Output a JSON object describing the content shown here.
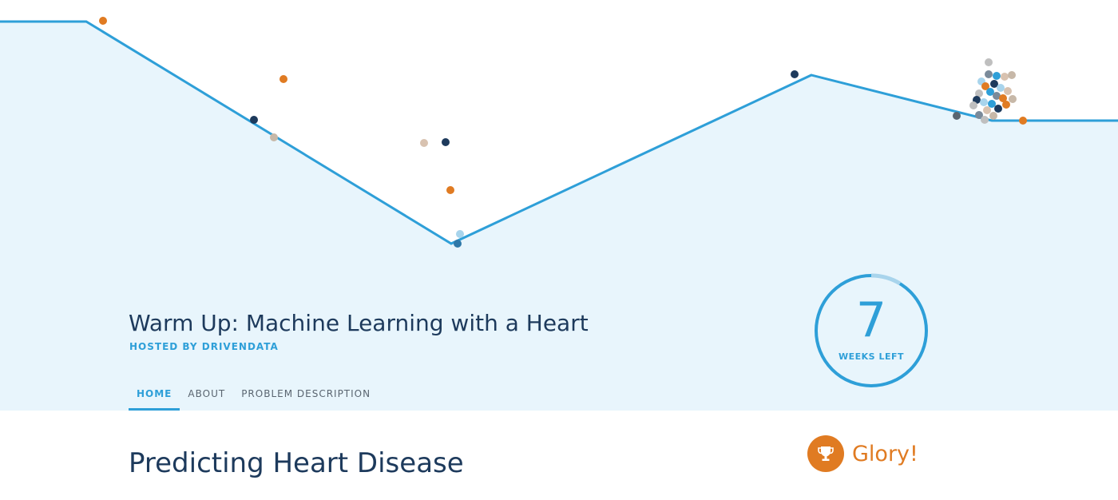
{
  "competition": {
    "title": "Warm Up: Machine Learning with a Heart",
    "host": "HOSTED BY DRIVENDATA"
  },
  "tabs": [
    {
      "label": "HOME",
      "active": true
    },
    {
      "label": "ABOUT",
      "active": false
    },
    {
      "label": "PROBLEM DESCRIPTION",
      "active": false
    }
  ],
  "timer": {
    "value": "7",
    "unit": "WEEKS LEFT"
  },
  "main": {
    "title": "Predicting Heart Disease"
  },
  "prize": {
    "label": "Glory!",
    "icon": "trophy-icon"
  },
  "colors": {
    "accent": "#2e9fd8",
    "hero_background": "#e8f5fc",
    "title_text": "#1d3a5c",
    "prize": "#e07b22"
  }
}
